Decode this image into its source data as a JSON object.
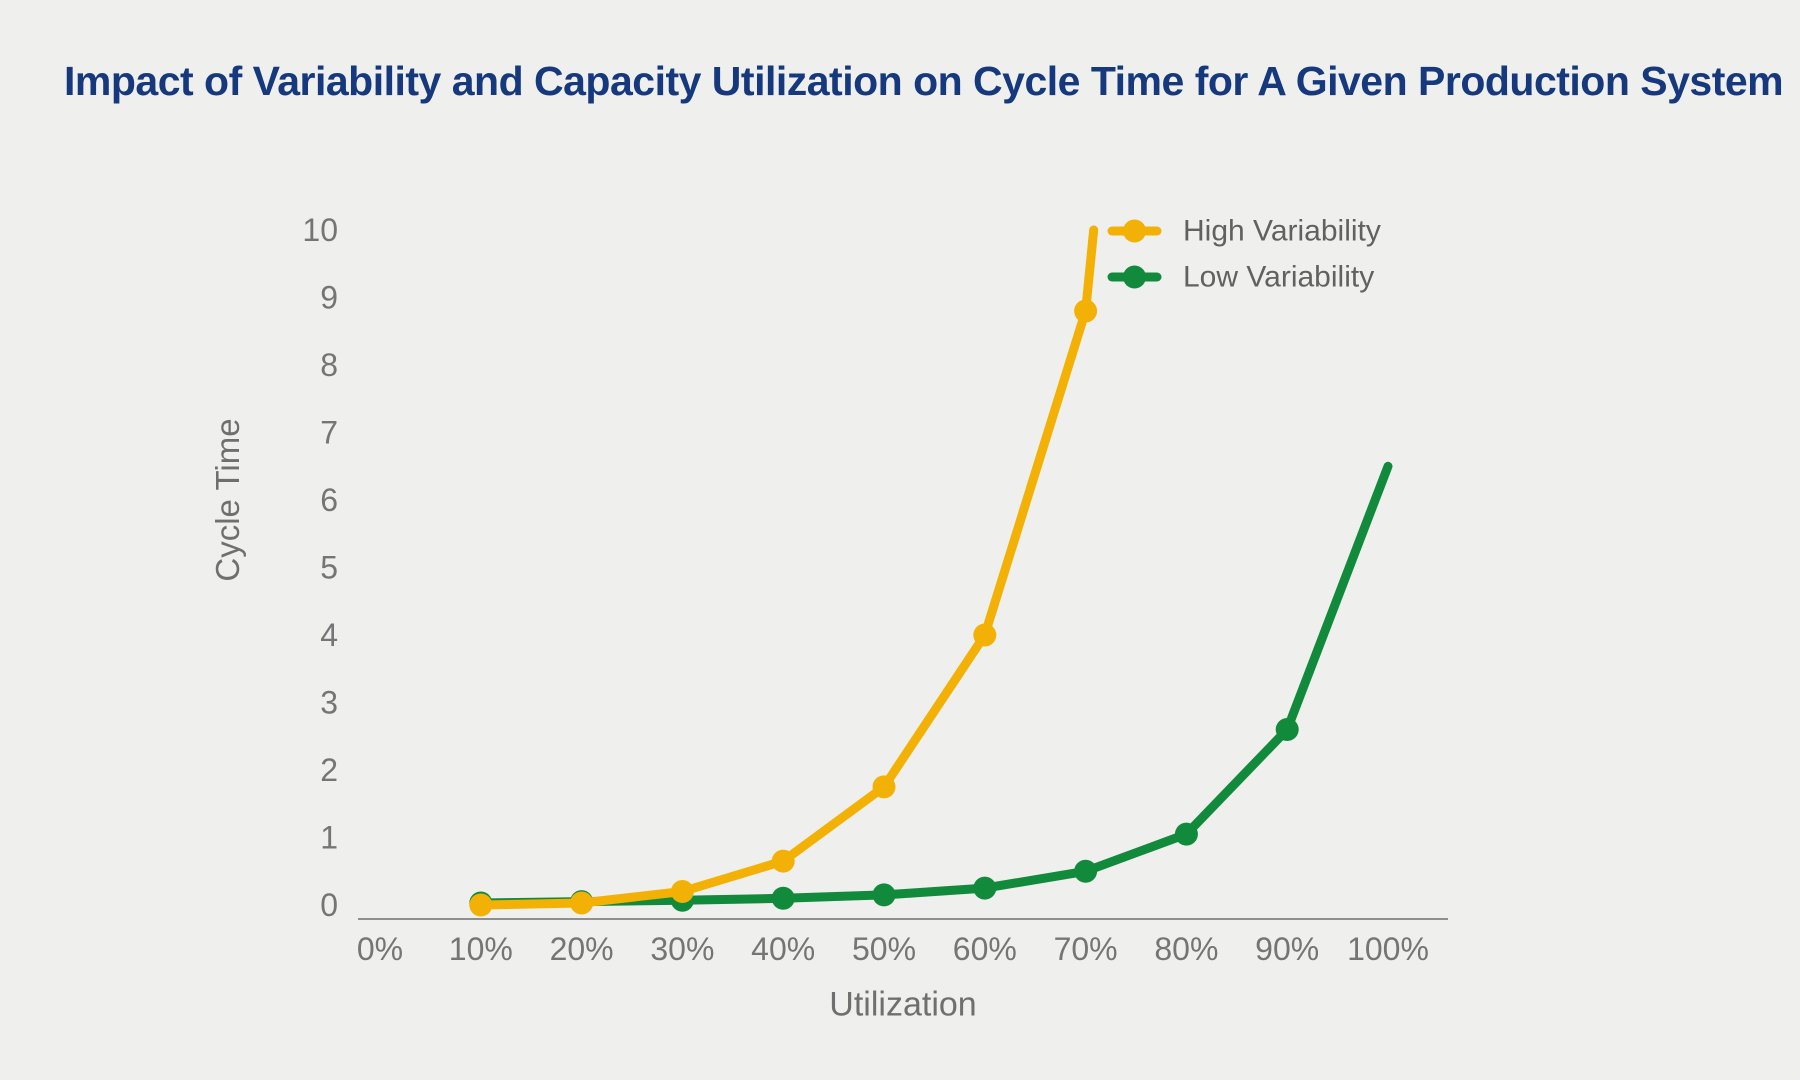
{
  "page": {
    "background": "#efefee"
  },
  "chart_data": {
    "type": "line",
    "title": "Impact of Variability and Capacity Utilization on Cycle Time for A Given Production System",
    "title_color": "#16397e",
    "xlabel": "Utilization",
    "ylabel": "Cycle Time",
    "x_tick_labels": [
      "0%",
      "10%",
      "20%",
      "30%",
      "40%",
      "50%",
      "60%",
      "70%",
      "80%",
      "90%",
      "100%"
    ],
    "y_tick_labels": [
      "0",
      "1",
      "2",
      "3",
      "4",
      "5",
      "6",
      "7",
      "8",
      "9",
      "10"
    ],
    "ylim": [
      0,
      10
    ],
    "xlim_pct": [
      0,
      106
    ],
    "grid": false,
    "legend_position": "top-right",
    "axis_text_color": "#757575",
    "legend_text_color": "#616161",
    "axis_line_color": "#8f8f8f",
    "series": [
      {
        "name": "Low Variability",
        "color": "#128a3c",
        "x_pct": [
          10,
          20,
          30,
          40,
          50,
          60,
          70,
          80,
          90
        ],
        "values": [
          0.03,
          0.05,
          0.07,
          0.1,
          0.15,
          0.25,
          0.5,
          1.05,
          2.6
        ],
        "line_continues_to": {
          "x_pct": 100,
          "value": 6.5
        }
      },
      {
        "name": "High Variability",
        "color": "#f2b104",
        "x_pct": [
          10,
          20,
          30,
          40,
          50,
          60,
          70
        ],
        "values": [
          0,
          0.03,
          0.2,
          0.65,
          1.75,
          4.0,
          8.8
        ],
        "line_continues_to": {
          "x_pct": 70.8,
          "value": 10
        }
      }
    ]
  }
}
